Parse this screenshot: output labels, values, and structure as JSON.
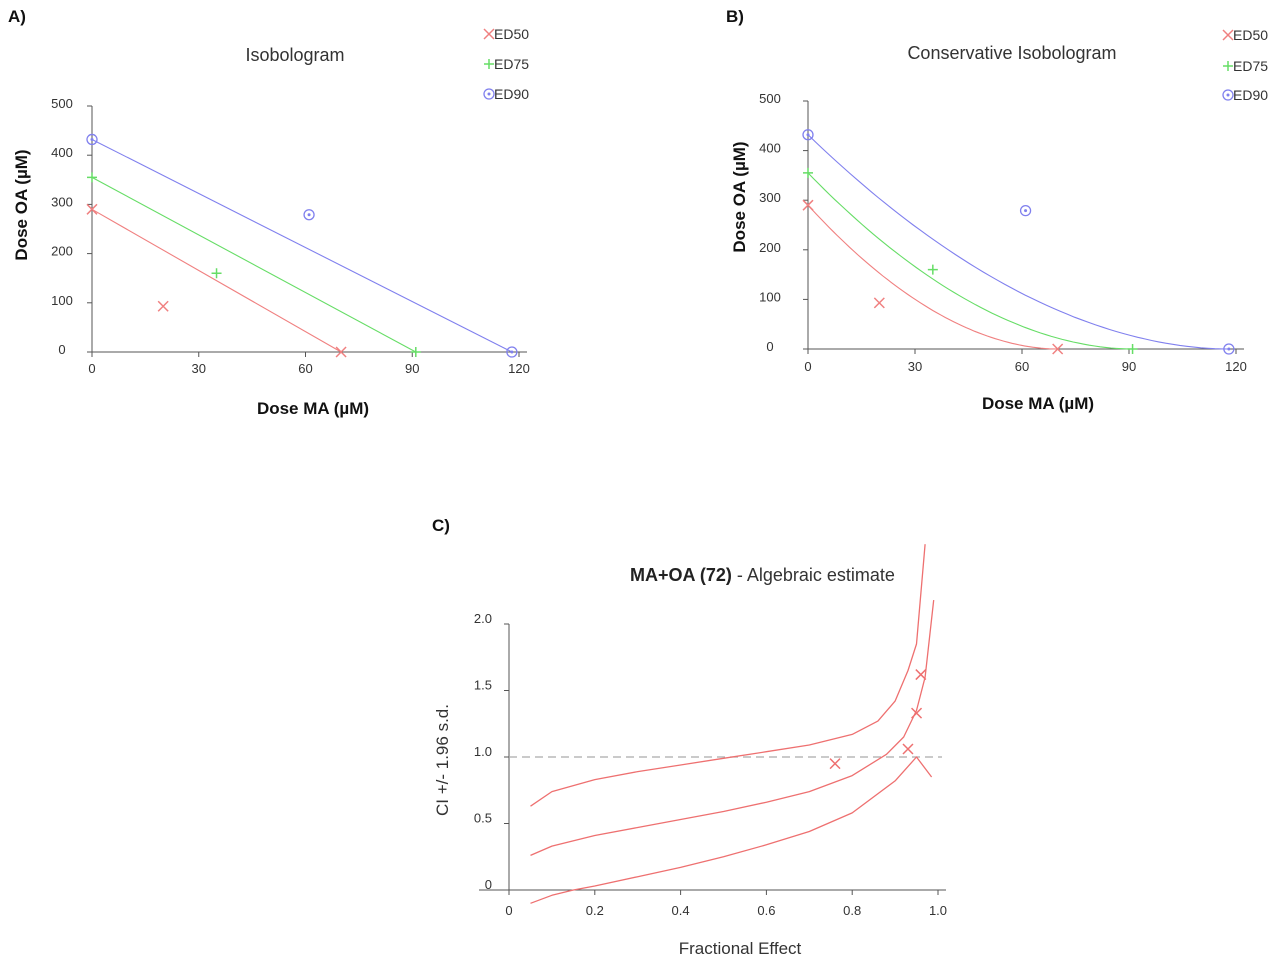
{
  "colors": {
    "ed50": "#f08080",
    "ed75": "#66dd66",
    "ed90": "#8080ee",
    "curve_c": "#ee7070",
    "refline": "#aaaaaa"
  },
  "chart_data": [
    {
      "panel": "A)",
      "type": "scatter",
      "title": "Isobologram",
      "xlabel": "Dose MA (µM)",
      "ylabel": "Dose OA (µM)",
      "xlim": [
        0,
        120
      ],
      "ylim": [
        0,
        500
      ],
      "xticks": [
        0,
        30,
        60,
        90,
        120
      ],
      "yticks": [
        0,
        100,
        200,
        300,
        400,
        500
      ],
      "curve": "linear",
      "series": [
        {
          "name": "ED50",
          "marker": "x",
          "color_key": "ed50",
          "line": [
            [
              0,
              290
            ],
            [
              70,
              0
            ]
          ],
          "point": [
            20,
            93
          ]
        },
        {
          "name": "ED75",
          "marker": "+",
          "color_key": "ed75",
          "line": [
            [
              0,
              355
            ],
            [
              91,
              0
            ]
          ],
          "point": [
            35,
            160
          ]
        },
        {
          "name": "ED90",
          "marker": "circle",
          "color_key": "ed90",
          "line": [
            [
              0,
              432
            ],
            [
              118,
              0
            ]
          ],
          "point": [
            61,
            279
          ]
        }
      ]
    },
    {
      "panel": "B)",
      "type": "scatter",
      "title": "Conservative Isobologram",
      "xlabel": "Dose MA (µM)",
      "ylabel": "Dose OA (µM)",
      "xlim": [
        0,
        120
      ],
      "ylim": [
        0,
        500
      ],
      "xticks": [
        0,
        30,
        60,
        90,
        120
      ],
      "yticks": [
        0,
        100,
        200,
        300,
        400,
        500
      ],
      "curve": "conservative",
      "series": [
        {
          "name": "ED50",
          "marker": "x",
          "color_key": "ed50",
          "line": [
            [
              0,
              290
            ],
            [
              70,
              0
            ]
          ],
          "point": [
            20,
            93
          ]
        },
        {
          "name": "ED75",
          "marker": "+",
          "color_key": "ed75",
          "line": [
            [
              0,
              355
            ],
            [
              91,
              0
            ]
          ],
          "point": [
            35,
            160
          ]
        },
        {
          "name": "ED90",
          "marker": "circle",
          "color_key": "ed90",
          "line": [
            [
              0,
              432
            ],
            [
              118,
              0
            ]
          ],
          "point": [
            61,
            279
          ]
        }
      ]
    },
    {
      "panel": "C)",
      "type": "line",
      "title_bold": "MA+OA (72)",
      "title_rest": " - Algebraic estimate",
      "xlabel": "Fractional Effect",
      "ylabel": "CI +/- 1.96 s.d.",
      "xlim": [
        0,
        1.0
      ],
      "ylim": [
        0,
        2.0
      ],
      "xticks": [
        0,
        0.2,
        0.4,
        0.6,
        0.8,
        1.0
      ],
      "xtick_labels": [
        "0",
        "0.2",
        "0.4",
        "0.6",
        "0.8",
        "1.0"
      ],
      "yticks": [
        0,
        0.5,
        1.0,
        1.5,
        2.0
      ],
      "ytick_labels": [
        "0",
        "0.5",
        "1.0",
        "1.5",
        "2.0"
      ],
      "reference_line": 1.0,
      "series": [
        {
          "name": "upper",
          "x": [
            0.05,
            0.1,
            0.2,
            0.3,
            0.4,
            0.5,
            0.6,
            0.7,
            0.8,
            0.86,
            0.9,
            0.93,
            0.95,
            0.97
          ],
          "y": [
            0.63,
            0.74,
            0.83,
            0.89,
            0.94,
            0.99,
            1.04,
            1.09,
            1.17,
            1.27,
            1.42,
            1.65,
            1.85,
            2.6
          ]
        },
        {
          "name": "estimate",
          "x": [
            0.05,
            0.1,
            0.2,
            0.3,
            0.4,
            0.5,
            0.6,
            0.7,
            0.8,
            0.88,
            0.92,
            0.95,
            0.97,
            0.99
          ],
          "y": [
            0.26,
            0.33,
            0.41,
            0.47,
            0.53,
            0.59,
            0.66,
            0.74,
            0.86,
            1.02,
            1.15,
            1.35,
            1.6,
            2.18
          ]
        },
        {
          "name": "lower",
          "x": [
            0.05,
            0.1,
            0.15,
            0.2,
            0.3,
            0.4,
            0.5,
            0.6,
            0.7,
            0.8,
            0.9,
            0.95,
            0.985
          ],
          "y": [
            -0.1,
            -0.04,
            0.0,
            0.03,
            0.1,
            0.17,
            0.25,
            0.34,
            0.44,
            0.58,
            0.82,
            1.0,
            0.85
          ]
        }
      ],
      "points": [
        [
          0.76,
          0.95
        ],
        [
          0.93,
          1.06
        ],
        [
          0.95,
          1.33
        ],
        [
          0.96,
          1.62
        ]
      ]
    }
  ]
}
